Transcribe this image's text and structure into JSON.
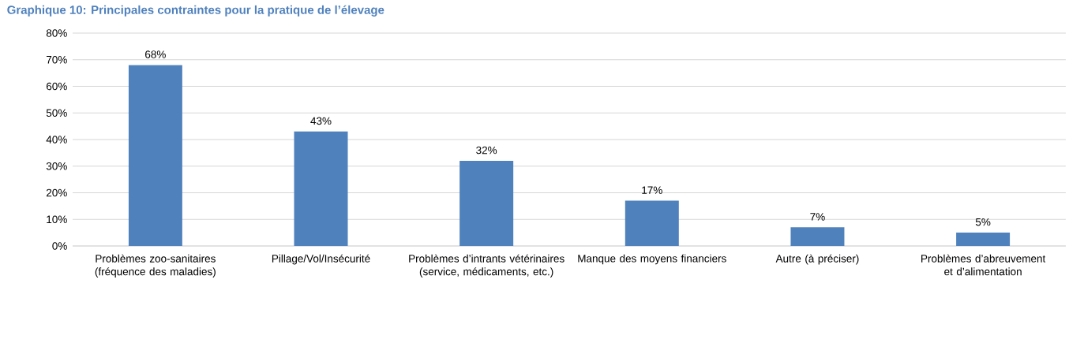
{
  "chart_data": {
    "type": "bar",
    "title": "Graphique 10: Principales contraintes pour la pratique de l’élevage",
    "categories": [
      "Problèmes zoo-sanitaires (fréquence des maladies)",
      "Pillage/Vol/Insécurité",
      "Problèmes d’intrants vétérinaires (service, médicaments, etc.)",
      "Manque des moyens financiers",
      "Autre (à préciser)",
      "Problèmes d’abreuvement et d’alimentation"
    ],
    "values": [
      68,
      43,
      32,
      17,
      7,
      5
    ],
    "value_labels": [
      "68%",
      "43%",
      "32%",
      "17%",
      "7%",
      "5%"
    ],
    "color": "#4f81bd",
    "ylim": [
      0,
      80
    ],
    "yticks": [
      {
        "value": 0,
        "label": "0%"
      },
      {
        "value": 10,
        "label": "10%"
      },
      {
        "value": 20,
        "label": "20%"
      },
      {
        "value": 30,
        "label": "30%"
      },
      {
        "value": 40,
        "label": "40%"
      },
      {
        "value": 50,
        "label": "50%"
      },
      {
        "value": 60,
        "label": "60%"
      },
      {
        "value": 70,
        "label": "70%"
      },
      {
        "value": 80,
        "label": "80%"
      }
    ],
    "grid": "y"
  }
}
